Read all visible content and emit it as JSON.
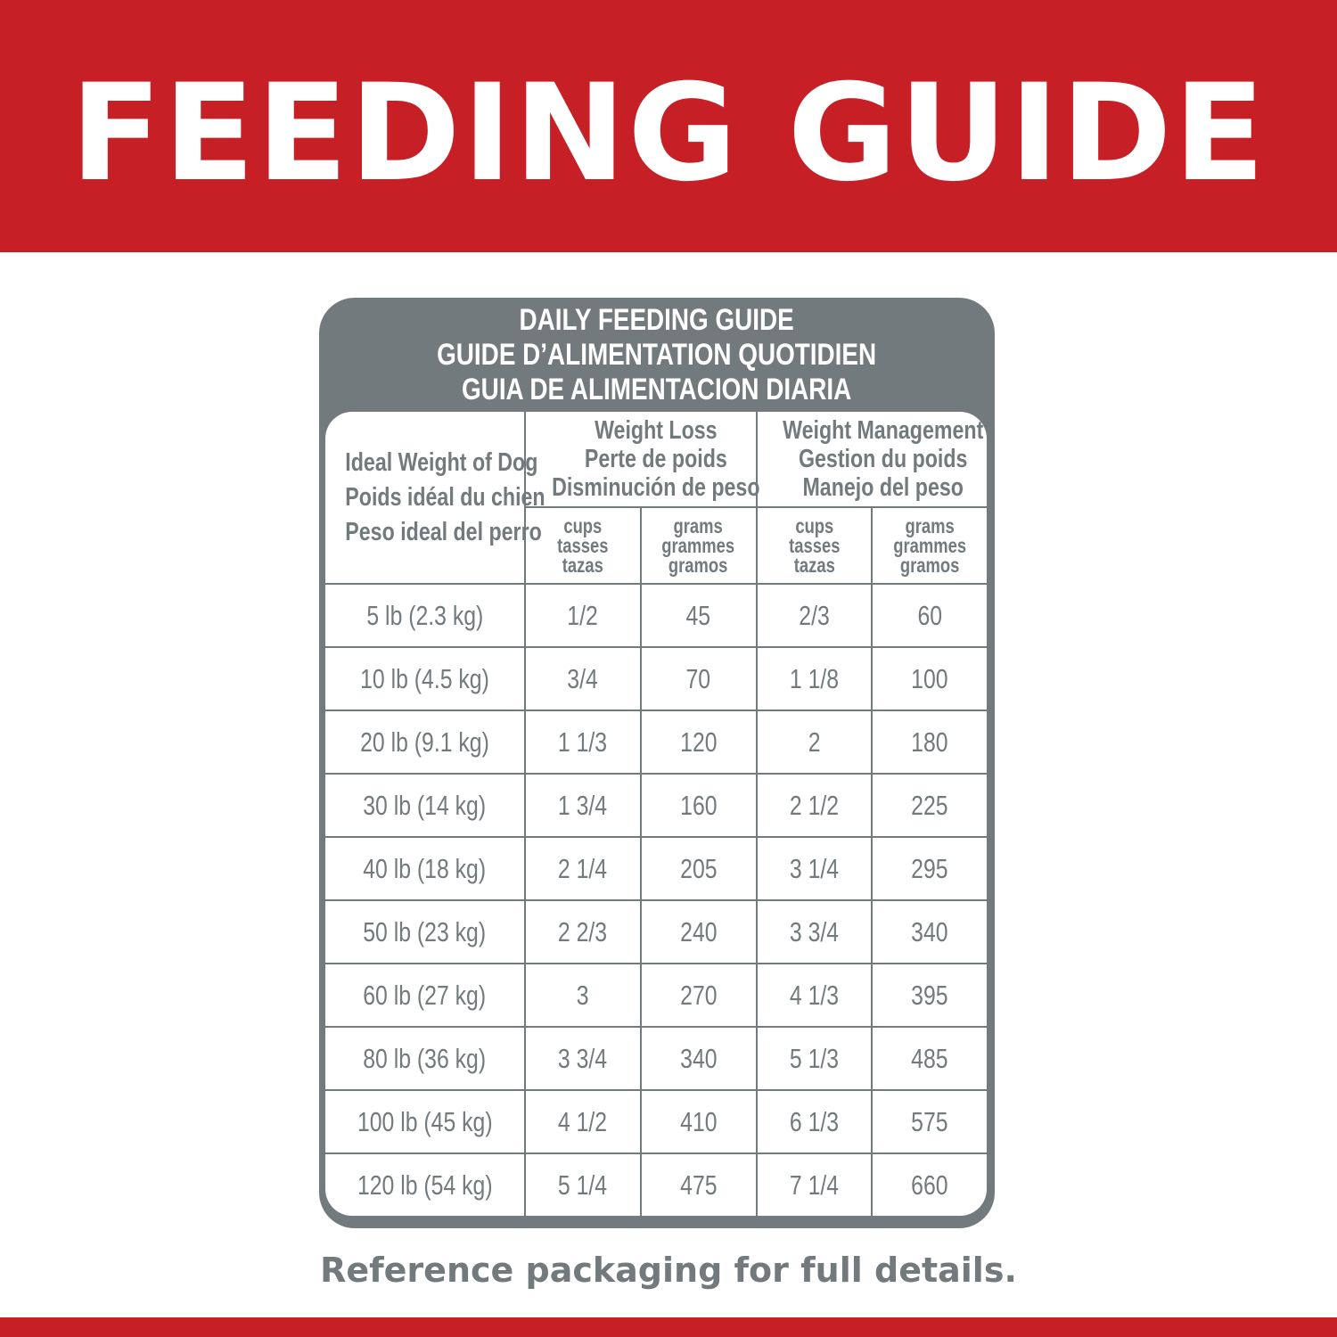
{
  "banner": {
    "title": "FEEDING GUIDE"
  },
  "card": {
    "title_lines": [
      "DAILY FEEDING GUIDE",
      "GUIDE D’ALIMENTATION QUOTIDIEN",
      "GUIA DE ALIMENTACION DIARIA"
    ],
    "row_header": [
      "Ideal Weight of Dog",
      "Poids idéal du chien",
      "Peso ideal del perro"
    ],
    "groups": [
      {
        "lines": [
          "Weight Loss",
          "Perte de poids",
          "Disminución de peso"
        ]
      },
      {
        "lines": [
          "Weight Management",
          "Gestion du poids",
          "Manejo del peso"
        ]
      }
    ],
    "units": {
      "cups": [
        "cups",
        "tasses",
        "tazas"
      ],
      "grams": [
        "grams",
        "grammes",
        "gramos"
      ]
    },
    "rows": [
      [
        "5 lb (2.3 kg)",
        "1/2",
        "45",
        "2/3",
        "60"
      ],
      [
        "10 lb (4.5 kg)",
        "3/4",
        "70",
        "1 1/8",
        "100"
      ],
      [
        "20 lb (9.1 kg)",
        "1 1/3",
        "120",
        "2",
        "180"
      ],
      [
        "30 lb (14 kg)",
        "1 3/4",
        "160",
        "2 1/2",
        "225"
      ],
      [
        "40 lb (18 kg)",
        "2 1/4",
        "205",
        "3 1/4",
        "295"
      ],
      [
        "50 lb (23 kg)",
        "2 2/3",
        "240",
        "3 3/4",
        "340"
      ],
      [
        "60 lb (27 kg)",
        "3",
        "270",
        "4 1/3",
        "395"
      ],
      [
        "80 lb (36 kg)",
        "3 3/4",
        "340",
        "5 1/3",
        "485"
      ],
      [
        "100 lb (45 kg)",
        "4 1/2",
        "410",
        "6 1/3",
        "575"
      ],
      [
        "120 lb (54 kg)",
        "5 1/4",
        "475",
        "7 1/4",
        "660"
      ]
    ]
  },
  "footer": {
    "text": "Reference packaging for full details."
  },
  "colors": {
    "brand_red": "#c61f25",
    "table_gray": "#737a7d"
  }
}
